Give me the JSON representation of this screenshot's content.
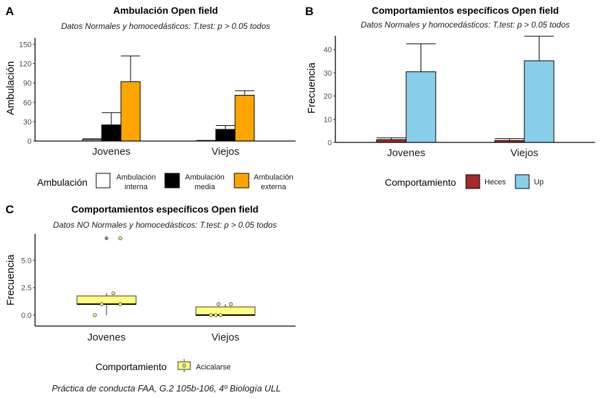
{
  "chart_data": [
    {
      "panel": "A",
      "type": "bar",
      "title": "Ambulación Open field",
      "subtitle": "Datos Normales y homocedásticos: T.test: p > 0.05 todos",
      "xlabel": "",
      "ylabel": "Ambulación",
      "ylim": [
        0,
        160
      ],
      "yticks": [
        0,
        30,
        60,
        90,
        120,
        150
      ],
      "categories": [
        "Jovenes",
        "Viejos"
      ],
      "series": [
        {
          "name": "Ambulación interna",
          "legend_lines": [
            "Ambulación",
            "interna"
          ],
          "color": "#ffffff",
          "values": [
            2,
            0.5
          ],
          "errors": [
            3.5,
            1
          ]
        },
        {
          "name": "Ambulación media",
          "legend_lines": [
            "Ambulación",
            "media"
          ],
          "color": "#000000",
          "values": [
            25,
            18
          ],
          "errors": [
            44,
            24
          ]
        },
        {
          "name": "Ambulación externa",
          "legend_lines": [
            "Ambulación",
            "externa"
          ],
          "color": "#FFA500",
          "values": [
            92,
            71
          ],
          "errors": [
            132,
            78
          ]
        }
      ],
      "legend": {
        "title": "Ambulación",
        "position": "bottom"
      }
    },
    {
      "panel": "B",
      "type": "bar",
      "title": "Comportamientos específicos Open field",
      "subtitle": "Datos Normales y homocedásticos: T.test: p > 0.05 todos",
      "xlabel": "",
      "ylabel": "Frecuencia",
      "ylim": [
        0,
        46
      ],
      "yticks": [
        0,
        10,
        20,
        30,
        40
      ],
      "categories": [
        "Jovenes",
        "Viejos"
      ],
      "series": [
        {
          "name": "Heces",
          "legend_lines": [
            "Heces"
          ],
          "color": "#A52A2A",
          "values": [
            1.2,
            0.8
          ],
          "errors": [
            2.0,
            1.6
          ]
        },
        {
          "name": "Up",
          "legend_lines": [
            "Up"
          ],
          "color": "#87CEEB",
          "values": [
            30.5,
            35.2
          ],
          "errors": [
            42.5,
            45.8
          ]
        }
      ],
      "legend": {
        "title": "Comportamiento",
        "position": "bottom"
      }
    },
    {
      "panel": "C",
      "type": "boxplot",
      "title": "Comportamientos específicos Open field",
      "subtitle": "Datos NO Normales y homocedásticos: T.test: p > 0.05 todos",
      "xlabel": "",
      "ylabel": "Frecuencia",
      "ylim": [
        -1.0,
        7.4
      ],
      "yticks": [
        0.0,
        2.5,
        5.0
      ],
      "ytick_labels": [
        "0.0",
        "2.5",
        "5.0"
      ],
      "categories": [
        "Jovenes",
        "Viejos"
      ],
      "series": [
        {
          "name": "Acicalarse",
          "color": "#FFFF80",
          "boxes": [
            {
              "q1": 1.0,
              "median": 1.0,
              "q3": 1.75,
              "whisker_low": 0.0,
              "whisker_high": 2.0,
              "outliers": [
                7
              ]
            },
            {
              "q1": 0.0,
              "median": 0.0,
              "q3": 0.75,
              "whisker_low": 0.0,
              "whisker_high": 1.0,
              "outliers": []
            }
          ],
          "points": [
            {
              "x": 0,
              "y": 7
            },
            {
              "x": 0,
              "y": 2
            },
            {
              "x": 0,
              "y": 1
            },
            {
              "x": 0,
              "y": 1
            },
            {
              "x": 0,
              "y": 0
            },
            {
              "x": 1,
              "y": 1
            },
            {
              "x": 1,
              "y": 1
            },
            {
              "x": 1,
              "y": 0
            },
            {
              "x": 1,
              "y": 0
            },
            {
              "x": 1,
              "y": 0
            }
          ]
        }
      ],
      "legend": {
        "title": "Comportamiento",
        "position": "bottom"
      }
    }
  ],
  "panel_letters": {
    "a": "A",
    "b": "B",
    "c": "C"
  },
  "caption": "Práctica de conducta FAA, G.2 105b-106, 4º Biología ULL"
}
